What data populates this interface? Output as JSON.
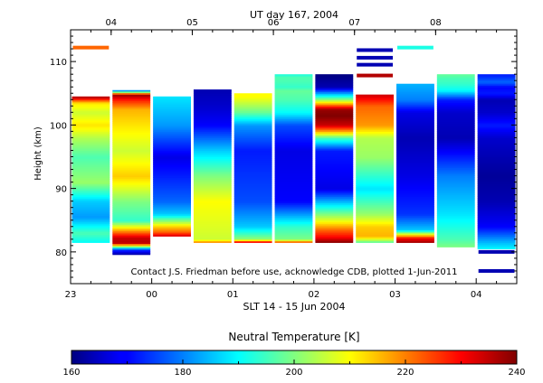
{
  "chart_data": {
    "type": "heatmap",
    "title": "UT day 167, 2004",
    "xlabel": "SLT 14 - 15 Jun 2004",
    "ylabel": "Height (km)",
    "annotation": "Contact J.S. Friedman before use, acknowledge CDB, plotted 1-Jun-2011",
    "x_ticks_bottom": [
      "23",
      "00",
      "01",
      "02",
      "03",
      "04"
    ],
    "x_ticks_top": [
      "04",
      "05",
      "06",
      "07",
      "08"
    ],
    "y_ticks": [
      "80",
      "90",
      "100",
      "110"
    ],
    "ylim": [
      75,
      115
    ],
    "colorbar": {
      "label": "Neutral Temperature [K]",
      "range": [
        160,
        240
      ],
      "ticks": [
        "160",
        "180",
        "200",
        "220",
        "240"
      ]
    },
    "columns": [
      {
        "x_start": 0,
        "x_end": 0.5,
        "segments": [
          [
            81.5,
            190
          ],
          [
            83,
            196
          ],
          [
            85.5,
            182
          ],
          [
            88,
            186
          ],
          [
            91,
            202
          ],
          [
            95,
            196
          ],
          [
            98,
            204
          ],
          [
            100,
            212
          ],
          [
            102,
            206
          ],
          [
            103.5,
            212
          ],
          [
            104.5,
            238
          ]
        ],
        "extra": [
          [
            112.2,
            222
          ]
        ]
      },
      {
        "x_start": 0.5,
        "x_end": 1,
        "segments": [
          [
            79.6,
            162
          ],
          [
            80.4,
            174
          ],
          [
            81.5,
            236
          ],
          [
            82.3,
            234
          ],
          [
            85,
            194
          ],
          [
            88,
            200
          ],
          [
            92,
            214
          ],
          [
            96,
            206
          ],
          [
            100,
            212
          ],
          [
            102.5,
            216
          ],
          [
            104,
            228
          ],
          [
            104.8,
            238
          ],
          [
            105.5,
            176
          ]
        ]
      },
      {
        "x_start": 1,
        "x_end": 1.5,
        "segments": [
          [
            82.5,
            234
          ],
          [
            83.2,
            222
          ],
          [
            84,
            214
          ],
          [
            86,
            186
          ],
          [
            88,
            178
          ],
          [
            95,
            168
          ],
          [
            100,
            182
          ],
          [
            104.5,
            188
          ]
        ]
      },
      {
        "x_start": 1.5,
        "x_end": 2,
        "segments": [
          [
            81.5,
            222
          ],
          [
            82,
            206
          ],
          [
            85,
            208
          ],
          [
            88,
            210
          ],
          [
            92,
            200
          ],
          [
            96,
            186
          ],
          [
            100,
            170
          ],
          [
            103,
            166
          ],
          [
            105.6,
            164
          ]
        ]
      },
      {
        "x_start": 2,
        "x_end": 2.5,
        "segments": [
          [
            81.5,
            238
          ],
          [
            82,
            202
          ],
          [
            84,
            186
          ],
          [
            88,
            176
          ],
          [
            96,
            172
          ],
          [
            100,
            182
          ],
          [
            102,
            198
          ],
          [
            104.5,
            210
          ],
          [
            105,
            210
          ]
        ]
      },
      {
        "x_start": 2.5,
        "x_end": 3,
        "segments": [
          [
            81.5,
            228
          ],
          [
            82,
            200
          ],
          [
            84,
            194
          ],
          [
            88,
            170
          ],
          [
            96,
            168
          ],
          [
            100,
            176
          ],
          [
            102,
            190
          ],
          [
            104,
            196
          ],
          [
            105.5,
            198
          ],
          [
            106,
            194
          ],
          [
            107,
            196
          ],
          [
            107.6,
            196
          ],
          [
            108,
            192
          ]
        ]
      },
      {
        "x_start": 3,
        "x_end": 3.5,
        "segments": [
          [
            81.5,
            240
          ],
          [
            82.4,
            230
          ],
          [
            83.5,
            222
          ],
          [
            85,
            208
          ],
          [
            90,
            168
          ],
          [
            96,
            172
          ],
          [
            98,
            196
          ],
          [
            99,
            216
          ],
          [
            100,
            234
          ],
          [
            101.5,
            240
          ],
          [
            102.5,
            238
          ],
          [
            104,
            202
          ],
          [
            105.5,
            174
          ],
          [
            106,
            164
          ],
          [
            108,
            160
          ]
        ]
      },
      {
        "x_start": 3.5,
        "x_end": 4,
        "segments": [
          [
            81.5,
            196
          ],
          [
            82.5,
            216
          ],
          [
            84,
            214
          ],
          [
            86,
            202
          ],
          [
            90,
            188
          ],
          [
            95,
            202
          ],
          [
            98,
            204
          ],
          [
            100,
            218
          ],
          [
            103,
            222
          ],
          [
            104.8,
            234
          ]
        ],
        "extra": [
          [
            107.8,
            236
          ],
          [
            109.5,
            164
          ],
          [
            110.6,
            164
          ],
          [
            111.8,
            164
          ]
        ]
      },
      {
        "x_start": 4,
        "x_end": 4.5,
        "segments": [
          [
            81.5,
            238
          ],
          [
            82.2,
            230
          ],
          [
            83.5,
            186
          ],
          [
            86,
            174
          ],
          [
            92,
            168
          ],
          [
            98,
            164
          ],
          [
            102,
            168
          ],
          [
            104,
            180
          ],
          [
            106.5,
            184
          ]
        ],
        "extra": [
          [
            112.2,
            192
          ]
        ]
      },
      {
        "x_start": 4.5,
        "x_end": 5,
        "segments": [
          [
            80.8,
            200
          ],
          [
            82,
            196
          ],
          [
            86,
            188
          ],
          [
            92,
            180
          ],
          [
            98,
            164
          ],
          [
            102,
            166
          ],
          [
            104,
            172
          ],
          [
            105.5,
            190
          ],
          [
            106.5,
            194
          ],
          [
            107.5,
            196
          ],
          [
            108,
            198
          ]
        ]
      },
      {
        "x_start": 5,
        "x_end": 5.5,
        "segments": [
          [
            80.5,
            190
          ],
          [
            82,
            182
          ],
          [
            84,
            170
          ],
          [
            88,
            164
          ],
          [
            92,
            162
          ],
          [
            98,
            166
          ],
          [
            100,
            172
          ],
          [
            102,
            166
          ],
          [
            104,
            164
          ],
          [
            105,
            172
          ],
          [
            106,
            170
          ],
          [
            106.8,
            178
          ],
          [
            108,
            172
          ]
        ],
        "extra": [
          [
            77,
            164
          ],
          [
            80,
            164
          ]
        ]
      }
    ]
  }
}
